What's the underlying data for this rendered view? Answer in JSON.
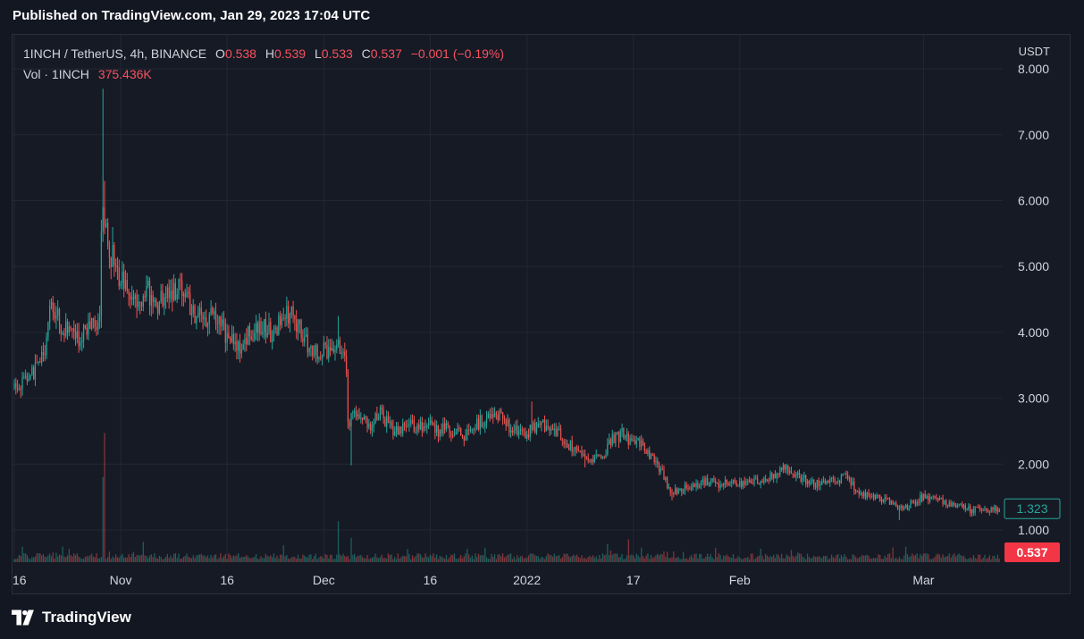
{
  "header": {
    "published": "Published on TradingView.com, Jan 29, 2023 17:04 UTC"
  },
  "legend": {
    "symbol": "1INCH / TetherUS, 4h, BINANCE",
    "o_label": "O",
    "o_value": "0.538",
    "h_label": "H",
    "h_value": "0.539",
    "l_label": "L",
    "l_value": "0.533",
    "c_label": "C",
    "c_value": "0.537",
    "change": "−0.001 (−0.19%)",
    "vol_label": "Vol · 1INCH",
    "vol_value": "375.436K"
  },
  "axis": {
    "currency": "USDT"
  },
  "footer": {
    "brand": "TradingView"
  },
  "colors": {
    "up": "#26a69a",
    "down": "#ef5350",
    "last_price_bg": "#f23645",
    "ref_price_border": "#26a69a",
    "grid": "#232733",
    "text": "#d1d4dc"
  },
  "chart_data": {
    "type": "candlestick",
    "y_ticks": [
      "1.000",
      "2.000",
      "3.000",
      "4.000",
      "5.000",
      "6.000",
      "7.000",
      "8.000"
    ],
    "y_tick_values": [
      1,
      2,
      3,
      4,
      5,
      6,
      7,
      8
    ],
    "ylim": [
      0.5,
      8.1
    ],
    "x_ticks": [
      "16",
      "Nov",
      "16",
      "Dec",
      "16",
      "2022",
      "17",
      "Feb",
      "Mar"
    ],
    "x_tick_positions": [
      0,
      11,
      22,
      32,
      43,
      53,
      64,
      75,
      94
    ],
    "x_range_days": [
      0,
      102
    ],
    "last_price": {
      "label": "0.537",
      "value": 0.537
    },
    "ref_price": {
      "label": "1.323",
      "value": 1.323
    },
    "price_path": [
      [
        0,
        3.15
      ],
      [
        2,
        3.35
      ],
      [
        3.5,
        3.8
      ],
      [
        4,
        4.5
      ],
      [
        5,
        4.1
      ],
      [
        6,
        4.0
      ],
      [
        7,
        3.85
      ],
      [
        8,
        4.15
      ],
      [
        8.5,
        4.05
      ],
      [
        9,
        4.3
      ],
      [
        9.3,
        6.2
      ],
      [
        9.6,
        5.5
      ],
      [
        10,
        5.25
      ],
      [
        11,
        4.9
      ],
      [
        12,
        4.5
      ],
      [
        13,
        4.55
      ],
      [
        14,
        4.6
      ],
      [
        15,
        4.45
      ],
      [
        16,
        4.6
      ],
      [
        17,
        4.7
      ],
      [
        18,
        4.5
      ],
      [
        19,
        4.2
      ],
      [
        20,
        4.25
      ],
      [
        21,
        4.3
      ],
      [
        22,
        4.0
      ],
      [
        23,
        3.75
      ],
      [
        24,
        3.9
      ],
      [
        25,
        4.05
      ],
      [
        26,
        4.1
      ],
      [
        27,
        3.95
      ],
      [
        28,
        4.25
      ],
      [
        29,
        4.3
      ],
      [
        30,
        3.9
      ],
      [
        31,
        3.75
      ],
      [
        32,
        3.7
      ],
      [
        33,
        3.75
      ],
      [
        33.5,
        3.8
      ],
      [
        34,
        3.65
      ],
      [
        34.5,
        3.5
      ],
      [
        34.7,
        2.4
      ],
      [
        35,
        2.7
      ],
      [
        36,
        2.75
      ],
      [
        37,
        2.6
      ],
      [
        38,
        2.8
      ],
      [
        39,
        2.55
      ],
      [
        40,
        2.5
      ],
      [
        41,
        2.6
      ],
      [
        42,
        2.55
      ],
      [
        43,
        2.65
      ],
      [
        44,
        2.5
      ],
      [
        45,
        2.55
      ],
      [
        46,
        2.45
      ],
      [
        47,
        2.45
      ],
      [
        48,
        2.6
      ],
      [
        49,
        2.7
      ],
      [
        50,
        2.8
      ],
      [
        51,
        2.6
      ],
      [
        52,
        2.5
      ],
      [
        53,
        2.45
      ],
      [
        54,
        2.55
      ],
      [
        55,
        2.6
      ],
      [
        56,
        2.55
      ],
      [
        57,
        2.35
      ],
      [
        58,
        2.25
      ],
      [
        59,
        2.2
      ],
      [
        60,
        2.05
      ],
      [
        61,
        2.15
      ],
      [
        62,
        2.4
      ],
      [
        63,
        2.45
      ],
      [
        64,
        2.35
      ],
      [
        65,
        2.3
      ],
      [
        66,
        2.1
      ],
      [
        67,
        1.9
      ],
      [
        68,
        1.6
      ],
      [
        69,
        1.6
      ],
      [
        70,
        1.65
      ],
      [
        71,
        1.7
      ],
      [
        72,
        1.75
      ],
      [
        73,
        1.7
      ],
      [
        74,
        1.75
      ],
      [
        75,
        1.7
      ],
      [
        76,
        1.7
      ],
      [
        77,
        1.75
      ],
      [
        78,
        1.8
      ],
      [
        79,
        1.85
      ],
      [
        80,
        1.95
      ],
      [
        81,
        1.85
      ],
      [
        82,
        1.75
      ],
      [
        83,
        1.7
      ],
      [
        84,
        1.7
      ],
      [
        85,
        1.75
      ],
      [
        86,
        1.8
      ],
      [
        87,
        1.65
      ],
      [
        88,
        1.55
      ],
      [
        89,
        1.5
      ],
      [
        90,
        1.45
      ],
      [
        91,
        1.4
      ],
      [
        92,
        1.3
      ],
      [
        93,
        1.4
      ],
      [
        94,
        1.5
      ],
      [
        95,
        1.5
      ],
      [
        96,
        1.45
      ],
      [
        97,
        1.4
      ],
      [
        98,
        1.35
      ],
      [
        99,
        1.3
      ],
      [
        100,
        1.32
      ],
      [
        101,
        1.32
      ]
    ],
    "wick_highs": [
      [
        4,
        4.55
      ],
      [
        9.2,
        7.7
      ],
      [
        9.4,
        6.3
      ],
      [
        10.1,
        5.6
      ],
      [
        28.6,
        4.3
      ],
      [
        33.5,
        4.25
      ],
      [
        53.5,
        2.95
      ]
    ],
    "wick_lows": [
      [
        34.8,
        1.98
      ],
      [
        59,
        1.95
      ],
      [
        68,
        1.45
      ],
      [
        91.5,
        1.15
      ]
    ],
    "volume_spikes": [
      [
        9.2,
        0.56
      ],
      [
        9.3,
        0.85
      ],
      [
        33.5,
        0.27
      ],
      [
        34.8,
        0.16
      ],
      [
        63.5,
        0.15
      ]
    ]
  }
}
